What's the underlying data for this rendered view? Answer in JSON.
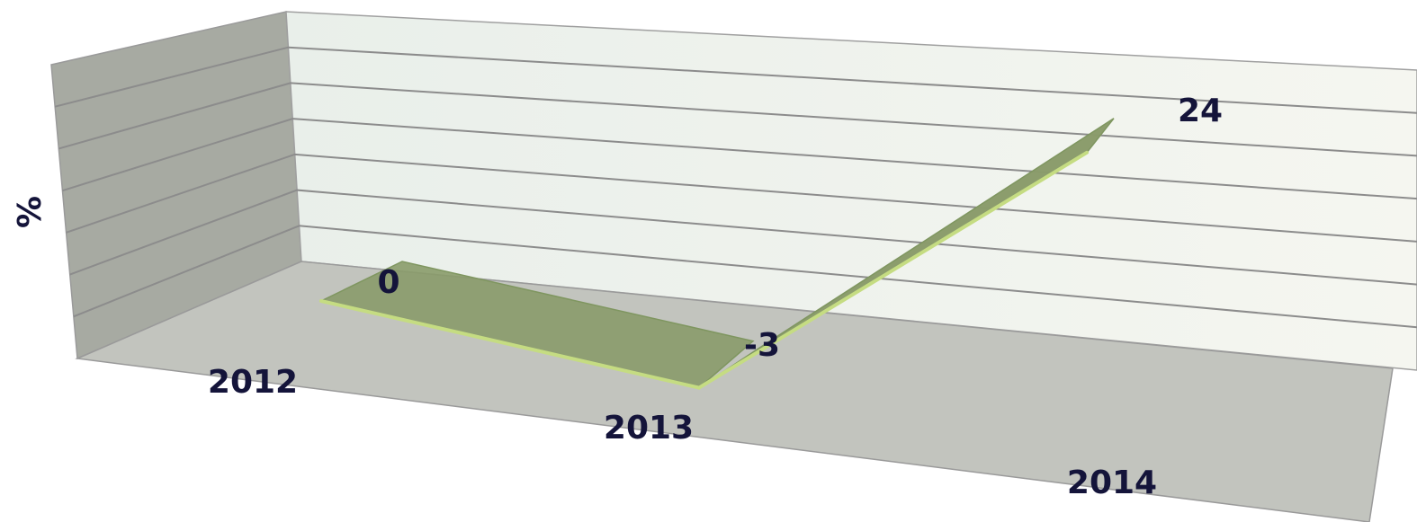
{
  "chart_data": {
    "type": "line",
    "style": "3d-ribbon",
    "categories": [
      "2012",
      "2013",
      "2014"
    ],
    "series": [
      {
        "values": [
          0,
          -3,
          24
        ]
      }
    ],
    "data_labels": [
      "0",
      "-3",
      "24"
    ],
    "ylabel": "%",
    "xlabel": "",
    "title": "",
    "ylim": [
      -10,
      20
    ],
    "grid": true,
    "legend": "none",
    "colors": {
      "series": "#8a9b6a",
      "series_edge": "#c5dc82",
      "back_wall": "#eef3ee",
      "side_wall": "#a7aaa2",
      "floor": "#c2c4be",
      "gridline": "#8c8c8c",
      "label": "#14143a"
    }
  }
}
